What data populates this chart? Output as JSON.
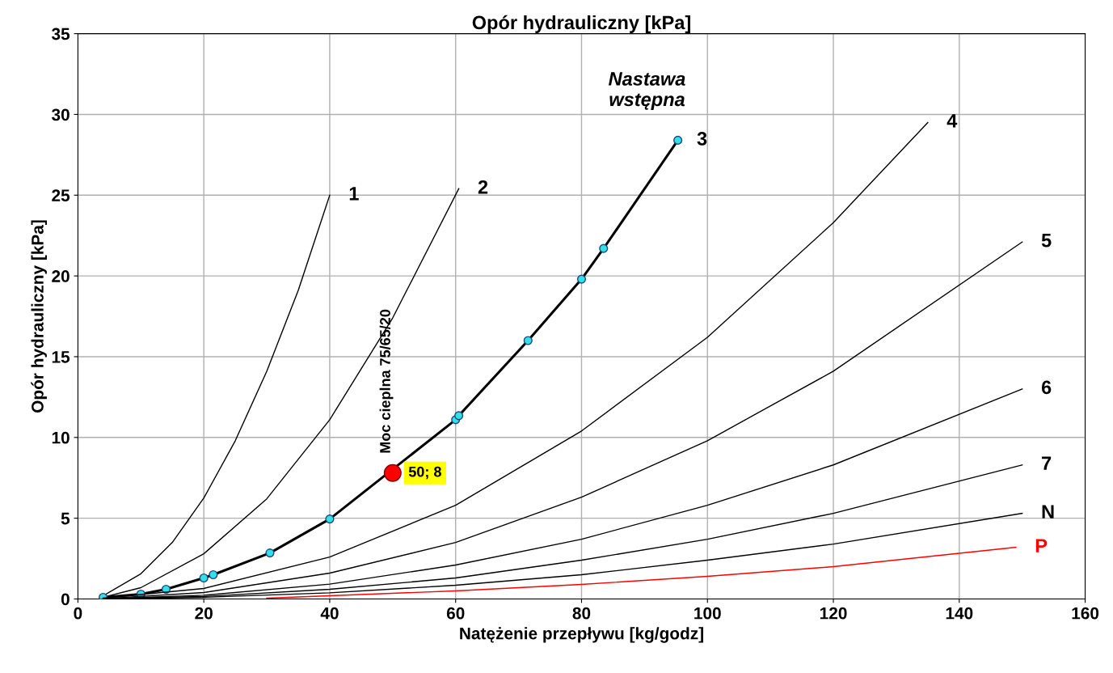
{
  "chart_data": {
    "type": "line",
    "title": "Opór hydrauliczny [kPa]",
    "xlabel": "Natężenie przepływu [kg/godz]",
    "ylabel": "Opór hydrauliczny [kPa]",
    "xlim": [
      0,
      160
    ],
    "ylim": [
      0,
      35
    ],
    "xticks": [
      0,
      20,
      40,
      60,
      80,
      100,
      120,
      140,
      160
    ],
    "yticks": [
      0,
      5,
      10,
      15,
      20,
      25,
      30,
      35
    ],
    "grid": true,
    "line_style": "solid",
    "annotations": [
      "Nastawa wstępna",
      {
        "text": "Moc cieplna 75/65/20",
        "x": 50,
        "y": 8
      }
    ],
    "series": [
      {
        "name": "1",
        "color": "#000000",
        "x": [
          4,
          10,
          15,
          20,
          25,
          30,
          35,
          40
        ],
        "values": [
          0.2,
          1.56,
          3.5,
          6.25,
          9.8,
          14.1,
          19.1,
          25
        ]
      },
      {
        "name": "2",
        "color": "#000000",
        "x": [
          4,
          10,
          20,
          30,
          40,
          50,
          60.5
        ],
        "values": [
          0.1,
          0.7,
          2.8,
          6.2,
          11.1,
          17.4,
          25.4
        ]
      },
      {
        "name": "3",
        "color": "#000000",
        "marker": "circle",
        "x": [
          4,
          10,
          14,
          20,
          21.5,
          30.5,
          40,
          60,
          60.5,
          71.5,
          80,
          83.5,
          95.3
        ],
        "values": [
          0.1,
          0.3,
          0.6,
          1.3,
          1.5,
          2.85,
          4.95,
          11.1,
          11.35,
          16,
          19.8,
          21.7,
          28.4
        ]
      },
      {
        "name": "4",
        "color": "#000000",
        "x": [
          4,
          20,
          40,
          60,
          80,
          100,
          120,
          135
        ],
        "values": [
          0.05,
          0.65,
          2.6,
          5.8,
          10.4,
          16.2,
          23.3,
          29.5
        ]
      },
      {
        "name": "5",
        "color": "#000000",
        "x": [
          4,
          20,
          40,
          60,
          80,
          100,
          120,
          150
        ],
        "values": [
          0.02,
          0.4,
          1.6,
          3.5,
          6.3,
          9.8,
          14.1,
          22.1
        ]
      },
      {
        "name": "6",
        "color": "#000000",
        "x": [
          4,
          20,
          40,
          60,
          80,
          100,
          120,
          150
        ],
        "values": [
          0.01,
          0.23,
          0.92,
          2.1,
          3.7,
          5.8,
          8.3,
          13.0
        ]
      },
      {
        "name": "7",
        "color": "#000000",
        "x": [
          4,
          20,
          40,
          60,
          80,
          100,
          120,
          150
        ],
        "values": [
          0.01,
          0.15,
          0.6,
          1.3,
          2.4,
          3.7,
          5.3,
          8.3
        ]
      },
      {
        "name": "N",
        "color": "#000000",
        "x": [
          4,
          20,
          40,
          60,
          80,
          100,
          120,
          150
        ],
        "values": [
          0.0,
          0.1,
          0.38,
          0.85,
          1.5,
          2.4,
          3.4,
          5.3
        ]
      },
      {
        "name": "P",
        "color": "#ff0000",
        "x": [
          30,
          40,
          60,
          80,
          100,
          120,
          149
        ],
        "values": [
          0.05,
          0.2,
          0.5,
          0.9,
          1.4,
          2.0,
          3.2
        ]
      },
      {
        "type": "scatter",
        "marker": "circle",
        "color": "#ff0000",
        "x": [
          50
        ],
        "values": [
          7.8
        ],
        "value_labels": [
          "50; 8"
        ]
      }
    ]
  }
}
